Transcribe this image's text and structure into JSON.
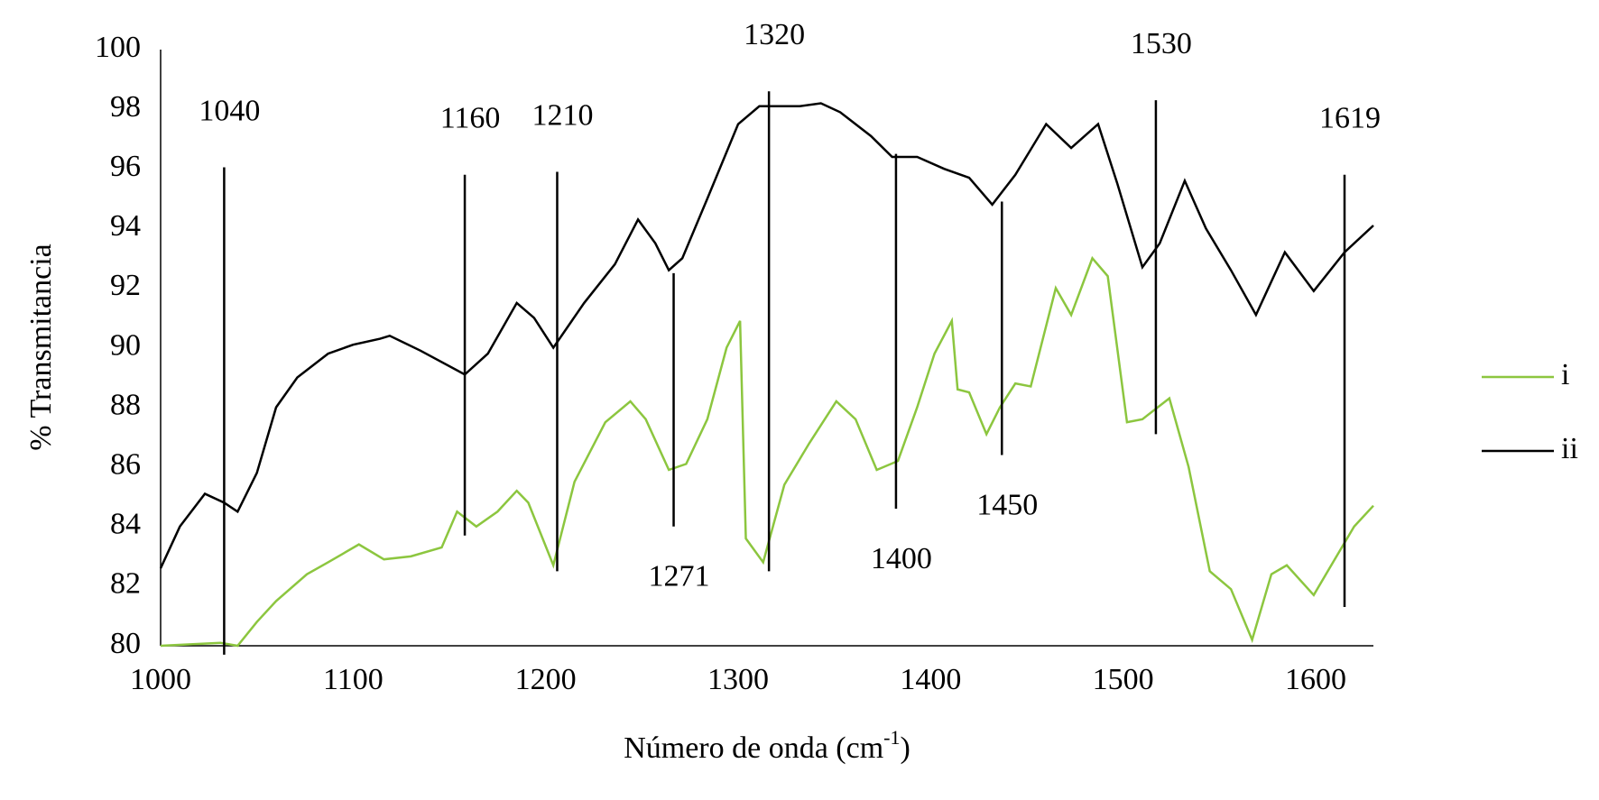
{
  "chart_data": {
    "type": "line",
    "y_label": "% Transmitancia",
    "x_label": [
      "Número de onda (cm",
      "-1",
      ")"
    ],
    "xlim": [
      1000,
      1630
    ],
    "xticks": [
      1000,
      1100,
      1200,
      1300,
      1400,
      1500,
      1600
    ],
    "ylim": [
      80,
      100
    ],
    "yticks": [
      80,
      82,
      84,
      86,
      88,
      90,
      92,
      94,
      96,
      98,
      100
    ],
    "grid": false,
    "legend": "right",
    "series": [
      {
        "name": "i",
        "color": "#8cc63f",
        "x": [
          1000,
          1031,
          1040,
          1050,
          1060,
          1076,
          1087,
          1103,
          1116,
          1130,
          1146,
          1154,
          1164,
          1175,
          1185,
          1191,
          1204,
          1215,
          1231,
          1244,
          1252,
          1264,
          1273,
          1284,
          1294,
          1301,
          1304,
          1313,
          1324,
          1337,
          1351,
          1361,
          1372,
          1383,
          1393,
          1402,
          1411,
          1414,
          1420,
          1429,
          1436,
          1444,
          1452,
          1465,
          1473,
          1484,
          1492,
          1502,
          1510,
          1524,
          1534,
          1545,
          1556,
          1567,
          1577,
          1585,
          1599,
          1609,
          1620,
          1630
        ],
        "values": [
          80.0,
          80.1,
          80.0,
          80.8,
          81.5,
          82.4,
          82.8,
          83.4,
          82.9,
          83.0,
          83.3,
          84.5,
          84.0,
          84.5,
          85.2,
          84.8,
          82.7,
          85.5,
          87.5,
          88.2,
          87.6,
          85.9,
          86.1,
          87.6,
          90.0,
          90.9,
          83.6,
          82.8,
          85.4,
          86.8,
          88.2,
          87.6,
          85.9,
          86.2,
          88.0,
          89.8,
          90.9,
          88.6,
          88.5,
          87.1,
          88.0,
          88.8,
          88.7,
          92.0,
          91.1,
          93.0,
          92.4,
          87.5,
          87.6,
          88.3,
          86.0,
          82.5,
          81.9,
          80.2,
          82.4,
          82.7,
          81.7,
          82.8,
          84.0,
          84.7
        ]
      },
      {
        "name": "ii",
        "color": "#000000",
        "x": [
          1000,
          1010,
          1023,
          1033,
          1040,
          1050,
          1060,
          1071,
          1087,
          1100,
          1114,
          1119,
          1135,
          1158,
          1170,
          1185,
          1194,
          1204,
          1220,
          1236,
          1248,
          1257,
          1264,
          1271,
          1284,
          1300,
          1311,
          1332,
          1343,
          1353,
          1369,
          1380,
          1393,
          1407,
          1420,
          1432,
          1444,
          1460,
          1473,
          1487,
          1497,
          1510,
          1519,
          1532,
          1543,
          1556,
          1569,
          1584,
          1599,
          1615,
          1630
        ],
        "values": [
          82.6,
          84.0,
          85.1,
          84.8,
          84.5,
          85.8,
          88.0,
          89.0,
          89.8,
          90.1,
          90.3,
          90.4,
          89.9,
          89.1,
          89.8,
          91.5,
          91.0,
          90.0,
          91.5,
          92.8,
          94.3,
          93.5,
          92.6,
          93.0,
          95.0,
          97.5,
          98.1,
          98.1,
          98.2,
          97.9,
          97.1,
          96.4,
          96.4,
          96.0,
          95.7,
          94.8,
          95.8,
          97.5,
          96.7,
          97.5,
          95.5,
          92.7,
          93.5,
          95.6,
          94.0,
          92.6,
          91.1,
          93.2,
          91.9,
          93.2,
          94.1
        ]
      }
    ],
    "annotations": [
      {
        "label": "1040",
        "x": 1033,
        "y_top": 96.05,
        "y_bottom": 79.7,
        "label_position": "top"
      },
      {
        "label": "1160",
        "x": 1158,
        "y_top": 95.8,
        "y_bottom": 83.7,
        "label_position": "top"
      },
      {
        "label": "1210",
        "x": 1206,
        "y_top": 95.9,
        "y_bottom": 82.5,
        "label_position": "top"
      },
      {
        "label": "1271",
        "x": 1266.5,
        "y_top": 92.5,
        "y_bottom": 84.0,
        "label_position": "bottom"
      },
      {
        "label": "1320",
        "x": 1316,
        "y_top": 98.6,
        "y_bottom": 82.5,
        "label_position": "top"
      },
      {
        "label": "1400",
        "x": 1382,
        "y_top": 96.5,
        "y_bottom": 84.6,
        "label_position": "bottom"
      },
      {
        "label": "1450",
        "x": 1437,
        "y_top": 94.9,
        "y_bottom": 86.4,
        "label_position": "bottom"
      },
      {
        "label": "1530",
        "x": 1517,
        "y_top": 98.3,
        "y_bottom": 87.1,
        "label_position": "top"
      },
      {
        "label": "1619",
        "x": 1615,
        "y_top": 95.8,
        "y_bottom": 81.3,
        "label_position": "top"
      }
    ]
  }
}
